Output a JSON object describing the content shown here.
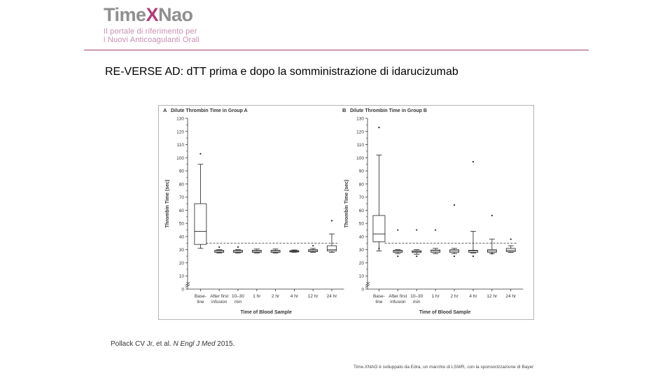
{
  "logo": {
    "brand_part1": "Time",
    "brand_part2": "X",
    "brand_part3": "Nao",
    "tagline_line1": "Il portale di riferimento per",
    "tagline_line2": "i Nuovi Anticoagulanti Orali"
  },
  "slide": {
    "title": "RE-VERSE AD: dTT prima e dopo la somministrazione di idarucizumab",
    "citation_authors": "Pollack CV Jr, et al. ",
    "citation_journal": "N Engl J Med",
    "citation_year": " 2015.",
    "footer": "Time.XNAO è sviluppato da Edra, un marchio di LSWR, con la sponsorizzazione di Bayer"
  },
  "colors": {
    "accent": "#9c3d74",
    "logo_gray": "#8f8f8f",
    "logo_x": "#b33a7a",
    "tagline": "#c98cb2"
  },
  "chart_data": [
    {
      "type": "box",
      "panel": "A",
      "title": "Dilute Thrombin Time in Group A",
      "xlabel": "Time of Blood Sample",
      "ylabel": "Thrombin Time (sec)",
      "ylim": [
        0,
        130
      ],
      "yticks": [
        0,
        10,
        20,
        30,
        40,
        50,
        60,
        70,
        80,
        90,
        100,
        110,
        120,
        130
      ],
      "categories": [
        "Base-\nline",
        "After first\ninfusion",
        "10–30\nmin",
        "1 hr",
        "2 hr",
        "4 hr",
        "12 hr",
        "24 hr"
      ],
      "reference_line": 35,
      "axis_break": true,
      "boxes": [
        {
          "min": 31,
          "q1": 34,
          "median": 44,
          "q3": 65,
          "max": 95,
          "outliers": [
            103
          ]
        },
        {
          "min": 27.5,
          "q1": 28,
          "median": 28.8,
          "q3": 29.5,
          "max": 30,
          "outliers": [
            32
          ]
        },
        {
          "min": 27.5,
          "q1": 28,
          "median": 28.8,
          "q3": 29.5,
          "max": 30,
          "outliers": [
            32
          ]
        },
        {
          "min": 27.5,
          "q1": 28,
          "median": 28.8,
          "q3": 29.5,
          "max": 30.5,
          "outliers": []
        },
        {
          "min": 27.5,
          "q1": 28,
          "median": 28.8,
          "q3": 29.5,
          "max": 30.5,
          "outliers": []
        },
        {
          "min": 28,
          "q1": 28.3,
          "median": 28.8,
          "q3": 29.3,
          "max": 29.8,
          "outliers": []
        },
        {
          "min": 28,
          "q1": 28.5,
          "median": 29.3,
          "q3": 30,
          "max": 31,
          "outliers": [
            33
          ]
        },
        {
          "min": 28,
          "q1": 29,
          "median": 30,
          "q3": 33,
          "max": 42,
          "outliers": [
            52
          ]
        }
      ]
    },
    {
      "type": "box",
      "panel": "B",
      "title": "Dilute Thrombin Time in Group B",
      "xlabel": "Time of Blood Sample",
      "ylabel": "Thrombin Time (sec)",
      "ylim": [
        0,
        130
      ],
      "yticks": [
        0,
        10,
        20,
        30,
        40,
        50,
        60,
        70,
        80,
        90,
        100,
        110,
        120,
        130
      ],
      "categories": [
        "Base-\nline",
        "After first\ninfusion",
        "10–30\nmin",
        "1 hr",
        "2 hr",
        "4 hr",
        "12 hr",
        "24 hr"
      ],
      "reference_line": 35,
      "axis_break": true,
      "boxes": [
        {
          "min": 29,
          "q1": 36,
          "median": 42,
          "q3": 56,
          "max": 102,
          "outliers": [
            123,
            31
          ]
        },
        {
          "min": 27,
          "q1": 28,
          "median": 28.8,
          "q3": 29.5,
          "max": 30,
          "outliers": [
            45,
            25
          ]
        },
        {
          "min": 26.5,
          "q1": 27.8,
          "median": 28.5,
          "q3": 29.3,
          "max": 30,
          "outliers": [
            45,
            25
          ]
        },
        {
          "min": 27,
          "q1": 28,
          "median": 29,
          "q3": 29.8,
          "max": 31,
          "outliers": [
            45
          ]
        },
        {
          "min": 27,
          "q1": 28,
          "median": 29,
          "q3": 30,
          "max": 31,
          "outliers": [
            64,
            25
          ]
        },
        {
          "min": 27.5,
          "q1": 28,
          "median": 29,
          "q3": 29.5,
          "max": 44,
          "outliers": [
            97,
            25
          ]
        },
        {
          "min": 27,
          "q1": 28,
          "median": 29,
          "q3": 30,
          "max": 38,
          "outliers": [
            56,
            27
          ]
        },
        {
          "min": 28,
          "q1": 28.5,
          "median": 29.5,
          "q3": 31,
          "max": 33,
          "outliers": [
            38
          ]
        }
      ]
    }
  ]
}
